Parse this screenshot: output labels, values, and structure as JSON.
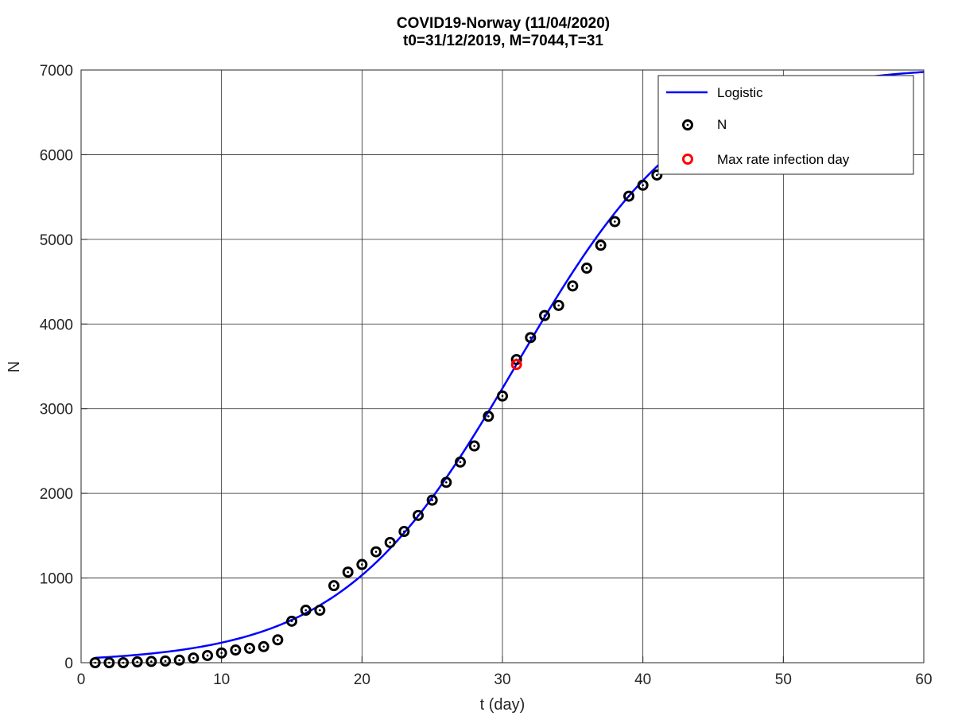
{
  "chart_data": {
    "type": "line",
    "title": "COVID19-Norway (11/04/2020)",
    "subtitle": "t0=31/12/2019, M=7044,T=31",
    "xlabel": "t (day)",
    "ylabel": "N",
    "xlim": [
      0,
      60
    ],
    "ylim": [
      0,
      7000
    ],
    "xticks": [
      0,
      10,
      20,
      30,
      40,
      50,
      60
    ],
    "yticks": [
      0,
      1000,
      2000,
      3000,
      4000,
      5000,
      6000,
      7000
    ],
    "grid": true,
    "legend_position": "top-right",
    "series": [
      {
        "name": "Logistic",
        "kind": "line",
        "color": "#0000ff",
        "function": "logistic",
        "params": {
          "M": 7044,
          "T": 31,
          "k": 0.16
        },
        "x_range": [
          1,
          60
        ]
      },
      {
        "name": "N",
        "kind": "scatter",
        "color": "#000000",
        "marker": "circle-dot",
        "x": [
          1,
          2,
          3,
          4,
          5,
          6,
          7,
          8,
          9,
          10,
          11,
          12,
          13,
          14,
          15,
          16,
          17,
          18,
          19,
          20,
          21,
          22,
          23,
          24,
          25,
          26,
          27,
          28,
          29,
          30,
          31,
          32,
          33,
          34,
          35,
          36,
          37,
          38,
          39,
          40,
          41,
          42,
          43,
          44,
          45
        ],
        "y": [
          0,
          0,
          0,
          10,
          15,
          20,
          30,
          55,
          85,
          115,
          150,
          170,
          190,
          270,
          490,
          620,
          620,
          910,
          1070,
          1160,
          1310,
          1420,
          1550,
          1740,
          1920,
          2130,
          2370,
          2560,
          2910,
          3150,
          3580,
          3840,
          4100,
          4220,
          4450,
          4660,
          4930,
          5210,
          5510,
          5640,
          5760,
          5860,
          6010,
          6160,
          6240
        ]
      },
      {
        "name": "Max rate infection day",
        "kind": "scatter",
        "color": "#ff0000",
        "marker": "circle",
        "x": [
          31
        ],
        "y": [
          3522
        ]
      }
    ]
  }
}
